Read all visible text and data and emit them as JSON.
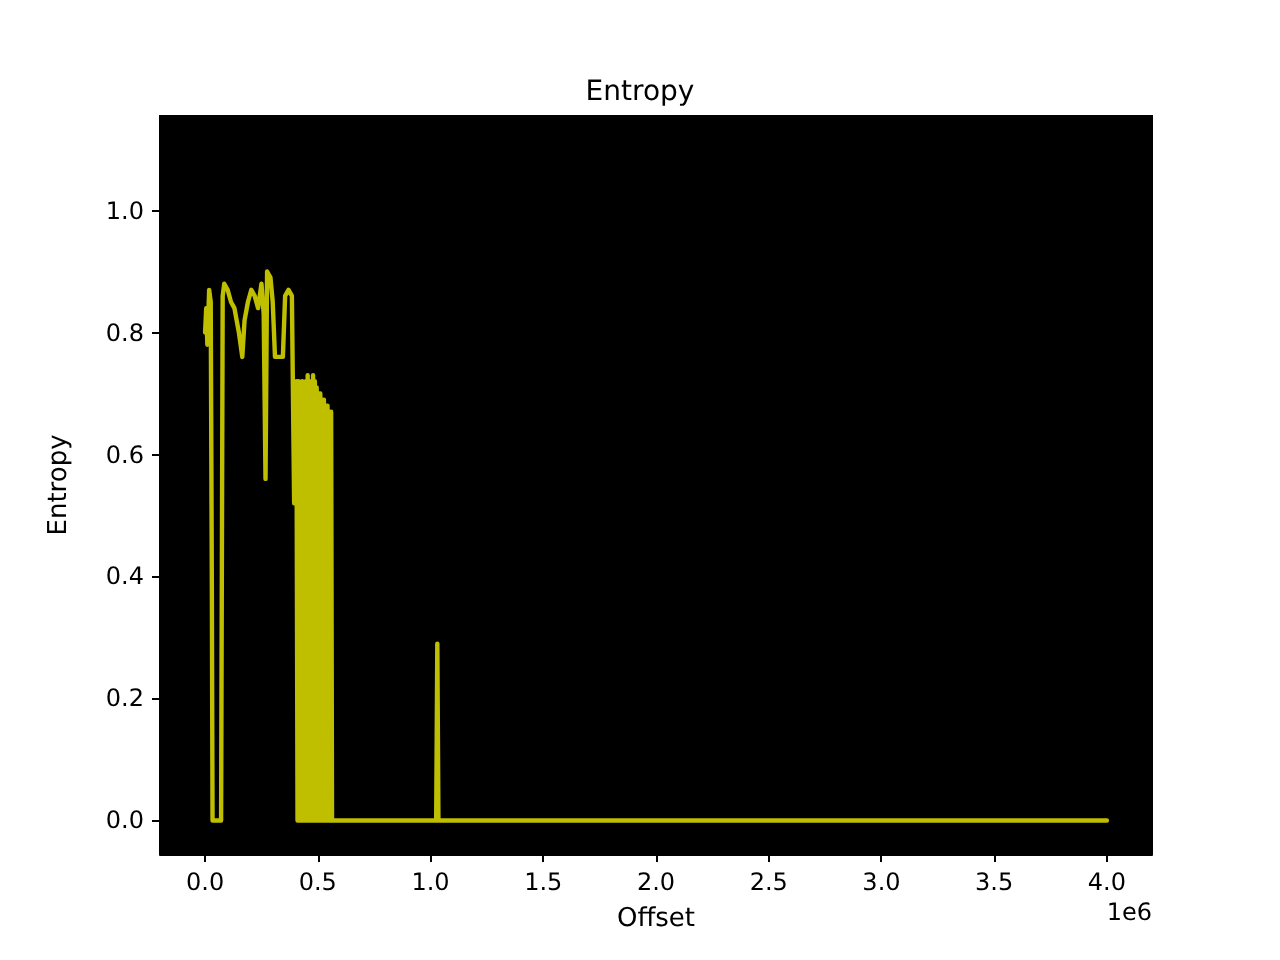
{
  "chart_data": {
    "type": "line",
    "title": "Entropy",
    "xlabel": "Offset",
    "ylabel": "Entropy",
    "color": "#bfbf00",
    "x": [
      0,
      0.005,
      0.01,
      0.018,
      0.025,
      0.03,
      0.033,
      0.071,
      0.078,
      0.085,
      0.1,
      0.115,
      0.13,
      0.14,
      0.15,
      0.165,
      0.175,
      0.19,
      0.205,
      0.22,
      0.235,
      0.25,
      0.26,
      0.268,
      0.275,
      0.29,
      0.3,
      0.31,
      0.33,
      0.345,
      0.355,
      0.37,
      0.385,
      0.395,
      0.405,
      0.41,
      0.415,
      0.419,
      0.423,
      0.427,
      0.431,
      0.435,
      0.439,
      0.443,
      0.447,
      0.451,
      0.455,
      0.459,
      0.463,
      0.467,
      0.471,
      0.475,
      0.479,
      0.483,
      0.487,
      0.491,
      0.495,
      0.499,
      0.503,
      0.507,
      0.511,
      0.515,
      0.519,
      0.523,
      0.527,
      0.531,
      0.535,
      0.539,
      0.543,
      0.547,
      0.551,
      0.555,
      0.559,
      0.563,
      1.025,
      1.03,
      1.035,
      4.0
    ],
    "values": [
      0.8,
      0.84,
      0.78,
      0.87,
      0.85,
      0.38,
      0,
      0,
      0.86,
      0.88,
      0.87,
      0.85,
      0.84,
      0.82,
      0.8,
      0.76,
      0.82,
      0.85,
      0.87,
      0.86,
      0.84,
      0.88,
      0.83,
      0.56,
      0.9,
      0.89,
      0.85,
      0.76,
      0.76,
      0.76,
      0.86,
      0.87,
      0.86,
      0.52,
      0.72,
      0,
      0.72,
      0,
      0.46,
      0,
      0.72,
      0,
      0.71,
      0,
      0.72,
      0,
      0.73,
      0,
      0.72,
      0,
      0.71,
      0,
      0.73,
      0,
      0.72,
      0,
      0.71,
      0,
      0.7,
      0,
      0.7,
      0,
      0.69,
      0,
      0.69,
      0,
      0.68,
      0,
      0.68,
      0,
      0.67,
      0,
      0.67,
      0,
      0,
      0.29,
      0,
      0
    ],
    "xlim": [
      -0.2,
      4.2
    ],
    "xticks": [
      {
        "value": 0,
        "label": "0.0"
      },
      0.5,
      {
        "value": 1,
        "label": "1.0"
      },
      1.5,
      {
        "value": 2,
        "label": "2.0"
      },
      2.5,
      {
        "value": 3,
        "label": "3.0"
      },
      3.5,
      {
        "value": 4,
        "label": "4.0"
      }
    ],
    "ylim": [
      -0.055,
      1.155
    ],
    "yticks": [
      {
        "value": 0,
        "label": "0.0"
      },
      0.2,
      0.4,
      0.6,
      0.8,
      {
        "value": 1,
        "label": "1.0"
      }
    ],
    "annotations": [
      "1e6"
    ]
  }
}
